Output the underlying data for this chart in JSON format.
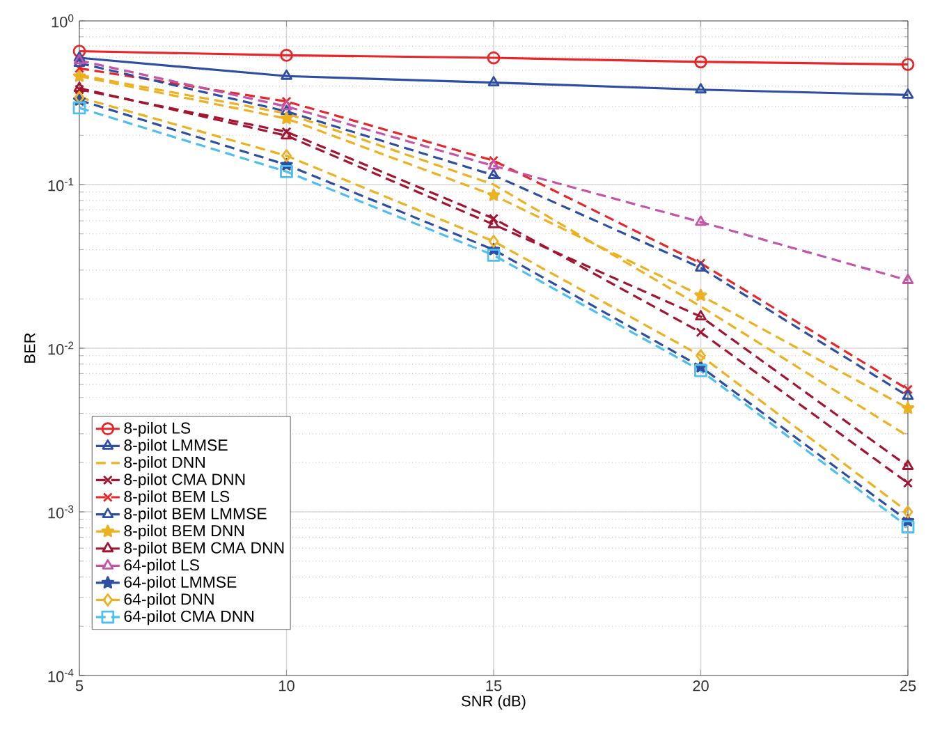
{
  "chart_data": {
    "type": "line",
    "xlabel": "SNR (dB)",
    "ylabel": "BER",
    "log": "y",
    "grid": true,
    "legend": "bottom left",
    "xlim": [
      5,
      25
    ],
    "xticks": [
      5,
      10,
      15,
      20,
      25
    ],
    "ylim": [
      0.0001,
      1
    ],
    "yticks": [
      {
        "value": 0.0001,
        "label": "10$^{-4}$"
      },
      {
        "value": 0.001,
        "label": "10$^{-3}$"
      },
      {
        "value": 0.01,
        "label": "10$^{-2}$"
      },
      {
        "value": 0.1,
        "label": "10$^{-1}$"
      },
      {
        "value": 1,
        "label": "10$^{0}$"
      }
    ],
    "x": [
      5,
      10,
      15,
      20,
      25
    ],
    "series": [
      {
        "name": "8-pilot LS",
        "color": "#e8262a",
        "marker": "circle",
        "line_style": "solid",
        "values": [
          0.653,
          0.617,
          0.595,
          0.562,
          0.542
        ]
      },
      {
        "name": "8-pilot LMMSE",
        "color": "#2e4ea3",
        "marker": "triangle",
        "line_style": "solid",
        "values": [
          0.595,
          0.46,
          0.42,
          0.38,
          0.353
        ]
      },
      {
        "name": "8-pilot DNN",
        "color": "#edb120",
        "marker": "none",
        "line_style": "dashed",
        "values": [
          0.467,
          0.272,
          0.1,
          0.018,
          0.0029
        ]
      },
      {
        "name": "8-pilot CMA DNN",
        "color": "#a2142f",
        "marker": "cross",
        "line_style": "dashed",
        "values": [
          0.381,
          0.21,
          0.062,
          0.0125,
          0.0015
        ]
      },
      {
        "name": "8-pilot BEM LS",
        "color": "#e8262a",
        "marker": "cross",
        "line_style": "dashed",
        "values": [
          0.513,
          0.322,
          0.14,
          0.033,
          0.0056
        ]
      },
      {
        "name": "8-pilot BEM LMMSE",
        "color": "#2e4ea3",
        "marker": "triangle",
        "line_style": "dashed",
        "values": [
          0.552,
          0.28,
          0.114,
          0.031,
          0.0051
        ]
      },
      {
        "name": "8-pilot BEM DNN",
        "color": "#edb120",
        "marker": "star",
        "line_style": "dashed",
        "values": [
          0.459,
          0.253,
          0.086,
          0.021,
          0.0043
        ]
      },
      {
        "name": "8-pilot BEM CMA DNN",
        "color": "#a2142f",
        "marker": "triangle",
        "line_style": "dashed",
        "values": [
          0.388,
          0.199,
          0.057,
          0.0156,
          0.0019
        ]
      },
      {
        "name": "64-pilot LS",
        "color": "#c455a6",
        "marker": "triangle",
        "line_style": "dashed",
        "values": [
          0.573,
          0.3,
          0.13,
          0.059,
          0.026
        ]
      },
      {
        "name": "64-pilot LMMSE",
        "color": "#2e4ea3",
        "marker": "star",
        "line_style": "dashed",
        "values": [
          0.328,
          0.132,
          0.04,
          0.0077,
          0.00088
        ]
      },
      {
        "name": "64-pilot DNN",
        "color": "#edb120",
        "marker": "diamond",
        "line_style": "dashed",
        "values": [
          0.341,
          0.15,
          0.045,
          0.009,
          0.001
        ]
      },
      {
        "name": "64-pilot CMA DNN",
        "color": "#4dbeee",
        "marker": "square",
        "line_style": "dashed",
        "values": [
          0.294,
          0.12,
          0.037,
          0.0073,
          0.00081
        ]
      }
    ]
  }
}
